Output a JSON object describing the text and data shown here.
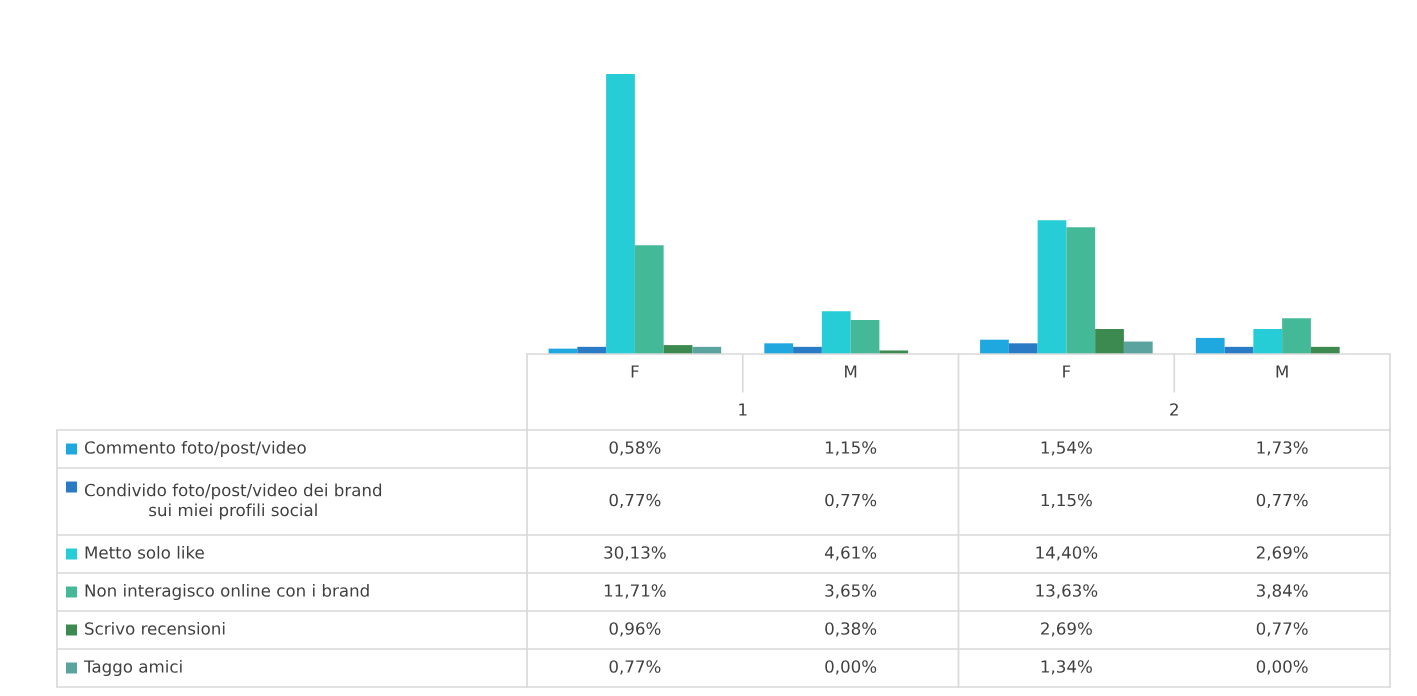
{
  "chart_data": {
    "type": "bar",
    "legend": "bottom",
    "categories": [
      "F",
      "M",
      "F",
      "M"
    ],
    "annotations": [
      "1",
      "2"
    ],
    "series": [
      {
        "name": "Commento foto/post/video",
        "color": "#1fa8e0",
        "values": [
          0.58,
          1.15,
          1.54,
          1.73
        ],
        "value_labels": [
          "0,58%",
          "1,15%",
          "1,54%",
          "1,73%"
        ]
      },
      {
        "name": "Condivido foto/post/video dei brand\nsui miei profili social",
        "color": "#2a7bc6",
        "values": [
          0.77,
          0.77,
          1.15,
          0.77
        ],
        "value_labels": [
          "0,77%",
          "0,77%",
          "1,15%",
          "0,77%"
        ]
      },
      {
        "name": "Metto solo like",
        "color": "#26ccd6",
        "values": [
          30.13,
          4.61,
          14.4,
          2.69
        ],
        "value_labels": [
          "30,13%",
          "4,61%",
          "14,40%",
          "2,69%"
        ]
      },
      {
        "name": "Non interagisco online con i brand",
        "color": "#43b998",
        "values": [
          11.71,
          3.65,
          13.63,
          3.84
        ],
        "value_labels": [
          "11,71%",
          "3,65%",
          "13,63%",
          "3,84%"
        ]
      },
      {
        "name": "Scrivo recensioni",
        "color": "#3c8a50",
        "values": [
          0.96,
          0.38,
          2.69,
          0.77
        ],
        "value_labels": [
          "0,96%",
          "0,38%",
          "2,69%",
          "0,77%"
        ]
      },
      {
        "name": "Taggo amici",
        "color": "#5ba39e",
        "values": [
          0.77,
          0.0,
          1.34,
          0.0
        ],
        "value_labels": [
          "0,77%",
          "0,00%",
          "1,34%",
          "0,00%"
        ]
      }
    ]
  }
}
